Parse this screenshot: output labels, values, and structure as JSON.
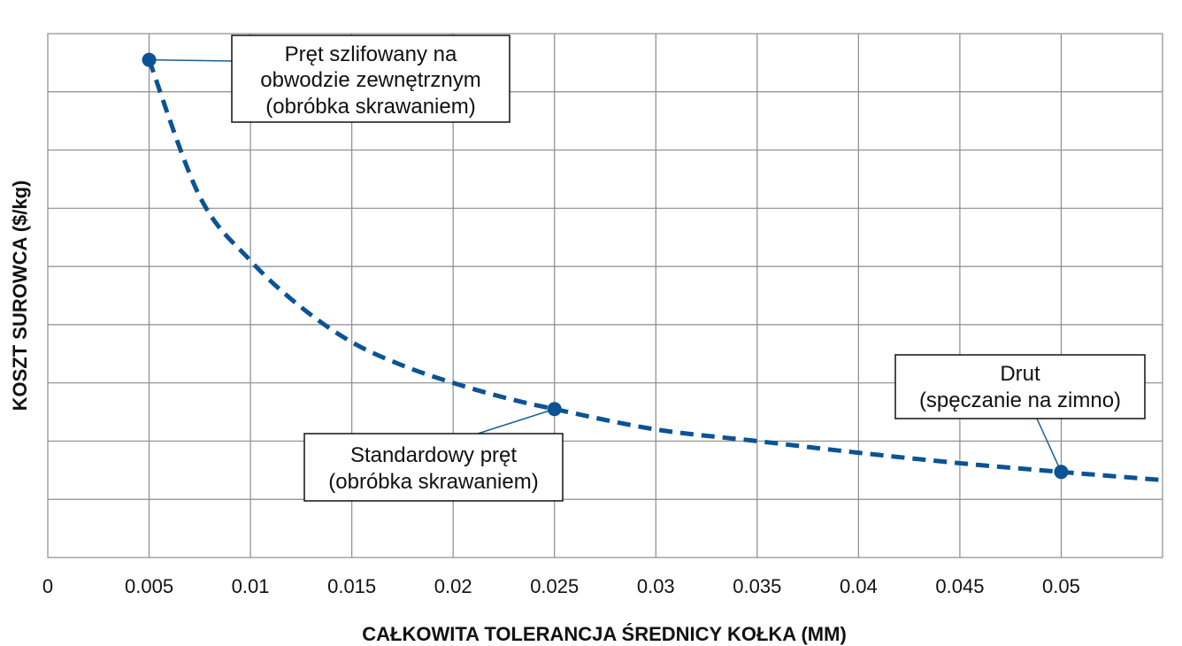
{
  "chart_data": {
    "type": "line",
    "xlabel": "CAŁKOWITA TOLERANCJA ŚREDNICY KOŁKA  (MM)",
    "ylabel": "KOSZT SUROWCA ($/kg)",
    "xlim": [
      0,
      0.055
    ],
    "ylim": [
      0,
      9
    ],
    "x_ticks": [
      "0",
      "0.005",
      "0.01",
      "0.015",
      "0.02",
      "0.025",
      "0.03",
      "0.035",
      "0.04",
      "0.045",
      "0.05"
    ],
    "y_tick_count": 9,
    "y_tick_labels_shown": false,
    "grid": true,
    "series": [
      {
        "style": "dashed",
        "color": "#0b5394",
        "x": [
          0.005,
          0.0075,
          0.01,
          0.0125,
          0.015,
          0.0175,
          0.02,
          0.0225,
          0.025,
          0.03,
          0.035,
          0.04,
          0.045,
          0.05,
          0.055
        ],
        "y": [
          8.55,
          6.2,
          5.1,
          4.3,
          3.7,
          3.3,
          3.0,
          2.75,
          2.55,
          2.2,
          2.0,
          1.8,
          1.62,
          1.47,
          1.33
        ]
      }
    ],
    "annotations": [
      {
        "point": {
          "x": 0.005,
          "y": 8.55
        },
        "lines": [
          "Pręt szlifowany na",
          "obwodzie zewnętrznym",
          "(obróbka skrawaniem)"
        ]
      },
      {
        "point": {
          "x": 0.025,
          "y": 2.55
        },
        "lines": [
          "Standardowy pręt",
          "(obróbka skrawaniem)"
        ]
      },
      {
        "point": {
          "x": 0.05,
          "y": 1.47
        },
        "lines": [
          "Drut",
          "(spęczanie na zimno)"
        ]
      }
    ]
  }
}
